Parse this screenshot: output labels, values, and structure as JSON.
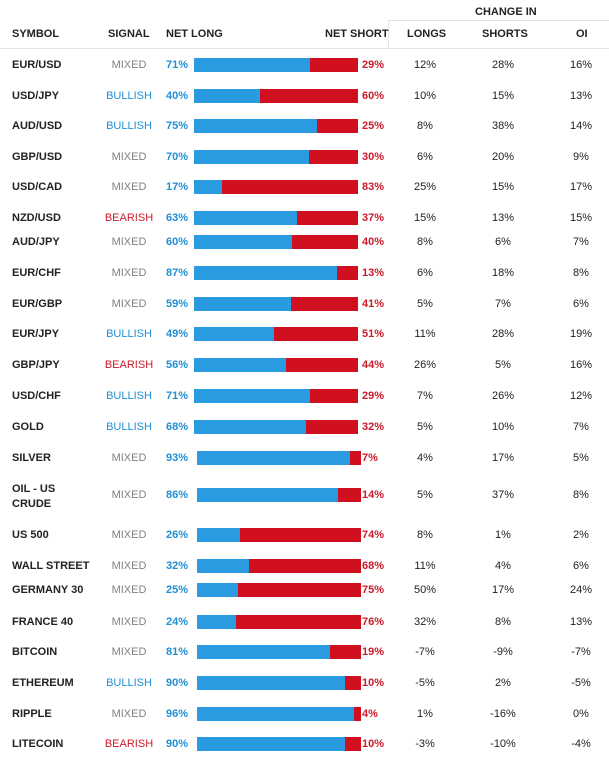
{
  "headers": {
    "symbol": "SYMBOL",
    "signal": "SIGNAL",
    "net_long": "NET LONG",
    "net_short": "NET SHORT",
    "change_in": "CHANGE IN",
    "longs": "LONGS",
    "shorts": "SHORTS",
    "oi": "OI"
  },
  "colors": {
    "long_bar": "#2a9be0",
    "short_bar": "#d0101e",
    "bullish": "#1f8fd6",
    "bearish": "#cc1a2a",
    "mixed": "#808080"
  },
  "rows": [
    {
      "symbol": "EUR/USD",
      "signal": "MIXED",
      "net_long": "71%",
      "net_short": "29%",
      "longs": "12%",
      "shorts": "28%",
      "oi": "16%",
      "long_fraction": 0.71
    },
    {
      "symbol": "USD/JPY",
      "signal": "BULLISH",
      "net_long": "40%",
      "net_short": "60%",
      "longs": "10%",
      "shorts": "15%",
      "oi": "13%",
      "long_fraction": 0.4
    },
    {
      "symbol": "AUD/USD",
      "signal": "BULLISH",
      "net_long": "75%",
      "net_short": "25%",
      "longs": "8%",
      "shorts": "38%",
      "oi": "14%",
      "long_fraction": 0.75
    },
    {
      "symbol": "GBP/USD",
      "signal": "MIXED",
      "net_long": "70%",
      "net_short": "30%",
      "longs": "6%",
      "shorts": "20%",
      "oi": "9%",
      "long_fraction": 0.7
    },
    {
      "symbol": "USD/CAD",
      "signal": "MIXED",
      "net_long": "17%",
      "net_short": "83%",
      "longs": "25%",
      "shorts": "15%",
      "oi": "17%",
      "long_fraction": 0.17
    },
    {
      "symbol": "NZD/USD",
      "signal": "BEARISH",
      "net_long": "63%",
      "net_short": "37%",
      "longs": "15%",
      "shorts": "13%",
      "oi": "15%",
      "long_fraction": 0.63
    },
    {
      "symbol": "AUD/JPY",
      "signal": "MIXED",
      "net_long": "60%",
      "net_short": "40%",
      "longs": "8%",
      "shorts": "6%",
      "oi": "7%",
      "long_fraction": 0.6
    },
    {
      "symbol": "EUR/CHF",
      "signal": "MIXED",
      "net_long": "87%",
      "net_short": "13%",
      "longs": "6%",
      "shorts": "18%",
      "oi": "8%",
      "long_fraction": 0.87
    },
    {
      "symbol": "EUR/GBP",
      "signal": "MIXED",
      "net_long": "59%",
      "net_short": "41%",
      "longs": "5%",
      "shorts": "7%",
      "oi": "6%",
      "long_fraction": 0.59
    },
    {
      "symbol": "EUR/JPY",
      "signal": "BULLISH",
      "net_long": "49%",
      "net_short": "51%",
      "longs": "11%",
      "shorts": "28%",
      "oi": "19%",
      "long_fraction": 0.49
    },
    {
      "symbol": "GBP/JPY",
      "signal": "BEARISH",
      "net_long": "56%",
      "net_short": "44%",
      "longs": "26%",
      "shorts": "5%",
      "oi": "16%",
      "long_fraction": 0.56
    },
    {
      "symbol": "USD/CHF",
      "signal": "BULLISH",
      "net_long": "71%",
      "net_short": "29%",
      "longs": "7%",
      "shorts": "26%",
      "oi": "12%",
      "long_fraction": 0.71
    },
    {
      "symbol": "GOLD",
      "signal": "BULLISH",
      "net_long": "68%",
      "net_short": "32%",
      "longs": "5%",
      "shorts": "10%",
      "oi": "7%",
      "long_fraction": 0.68
    },
    {
      "symbol": "SILVER",
      "signal": "MIXED",
      "net_long": "93%",
      "net_short": "7%",
      "longs": "4%",
      "shorts": "17%",
      "oi": "5%",
      "long_fraction": 0.93
    },
    {
      "symbol": "OIL - US CRUDE",
      "signal": "MIXED",
      "net_long": "86%",
      "net_short": "14%",
      "longs": "5%",
      "shorts": "37%",
      "oi": "8%",
      "long_fraction": 0.86
    },
    {
      "symbol": "US 500",
      "signal": "MIXED",
      "net_long": "26%",
      "net_short": "74%",
      "longs": "8%",
      "shorts": "1%",
      "oi": "2%",
      "long_fraction": 0.26
    },
    {
      "symbol": "WALL STREET",
      "signal": "MIXED",
      "net_long": "32%",
      "net_short": "68%",
      "longs": "11%",
      "shorts": "4%",
      "oi": "6%",
      "long_fraction": 0.32
    },
    {
      "symbol": "GERMANY 30",
      "signal": "MIXED",
      "net_long": "25%",
      "net_short": "75%",
      "longs": "50%",
      "shorts": "17%",
      "oi": "24%",
      "long_fraction": 0.25
    },
    {
      "symbol": "FRANCE 40",
      "signal": "MIXED",
      "net_long": "24%",
      "net_short": "76%",
      "longs": "32%",
      "shorts": "8%",
      "oi": "13%",
      "long_fraction": 0.24
    },
    {
      "symbol": "BITCOIN",
      "signal": "MIXED",
      "net_long": "81%",
      "net_short": "19%",
      "longs": "-7%",
      "shorts": "-9%",
      "oi": "-7%",
      "long_fraction": 0.81
    },
    {
      "symbol": "ETHEREUM",
      "signal": "BULLISH",
      "net_long": "90%",
      "net_short": "10%",
      "longs": "-5%",
      "shorts": "2%",
      "oi": "-5%",
      "long_fraction": 0.9
    },
    {
      "symbol": "RIPPLE",
      "signal": "MIXED",
      "net_long": "96%",
      "net_short": "4%",
      "longs": "1%",
      "shorts": "-16%",
      "oi": "0%",
      "long_fraction": 0.96
    },
    {
      "symbol": "LITECOIN",
      "signal": "BEARISH",
      "net_long": "90%",
      "net_short": "10%",
      "longs": "-3%",
      "shorts": "-10%",
      "oi": "-4%",
      "long_fraction": 0.9
    }
  ]
}
